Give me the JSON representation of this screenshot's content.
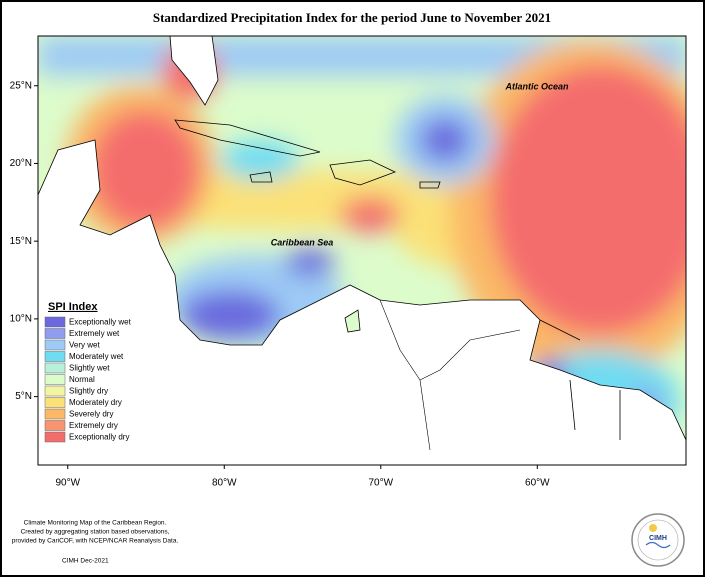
{
  "title": "Standardized Precipitation Index for the period June to November 2021",
  "map": {
    "xlim": [
      -91.9,
      -50.5
    ],
    "ylim": [
      0.6,
      28.2
    ],
    "xticks": [
      {
        "value": -90,
        "label": "90°W"
      },
      {
        "value": -80,
        "label": "80°W"
      },
      {
        "value": -70,
        "label": "70°W"
      },
      {
        "value": -60,
        "label": "60°W"
      }
    ],
    "yticks": [
      {
        "value": 25,
        "label": "25°N"
      },
      {
        "value": 20,
        "label": "20°N"
      },
      {
        "value": 15,
        "label": "15°N"
      },
      {
        "value": 10,
        "label": "10°N"
      },
      {
        "value": 5,
        "label": "5°N"
      }
    ],
    "labels": [
      "Atlantic Ocean",
      "Caribbean Sea"
    ]
  },
  "legend": {
    "title": "SPI Index",
    "items": [
      {
        "label": "Exceptionally wet",
        "color": "#6a6ade"
      },
      {
        "label": "Extremely wet",
        "color": "#8f9cf0"
      },
      {
        "label": "Very wet",
        "color": "#9dcbf5"
      },
      {
        "label": "Moderately wet",
        "color": "#6fdcf2"
      },
      {
        "label": "Slightly wet",
        "color": "#b9f0dc"
      },
      {
        "label": "Normal",
        "color": "#dcfccb"
      },
      {
        "label": "Slightly dry",
        "color": "#f3f5a2"
      },
      {
        "label": "Moderately dry",
        "color": "#fbe177"
      },
      {
        "label": "Severely dry",
        "color": "#fbb866"
      },
      {
        "label": "Extremely dry",
        "color": "#f8946f"
      },
      {
        "label": "Exceptionally dry",
        "color": "#f46d6d"
      }
    ]
  },
  "footer": {
    "lines": [
      "Climate Monitoring Map of the Caribbean Region.",
      "Created by aggregating station based observations,",
      "provided by CariCOF, with NCEP/NCAR Reanalysis Data."
    ],
    "date": "CIMH Dec-2021"
  },
  "logo": "CIMH"
}
